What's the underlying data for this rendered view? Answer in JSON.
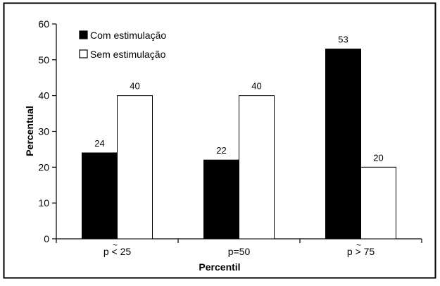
{
  "chart_data": {
    "type": "bar",
    "categories": [
      "p < 25",
      "p=50",
      "p > 75"
    ],
    "category_marks": [
      "~",
      "",
      "~"
    ],
    "series": [
      {
        "name": "Com estimulação",
        "values": [
          24,
          22,
          53
        ],
        "color": "#000000"
      },
      {
        "name": "Sem estimulação",
        "values": [
          40,
          40,
          20
        ],
        "color": "#ffffff"
      }
    ],
    "xlabel": "Percentil",
    "ylabel": "Percentual",
    "ylim": [
      0,
      60
    ],
    "yticks": [
      0,
      10,
      20,
      30,
      40,
      50,
      60
    ],
    "grid": false,
    "legend": "top-left",
    "data_labels": true
  }
}
